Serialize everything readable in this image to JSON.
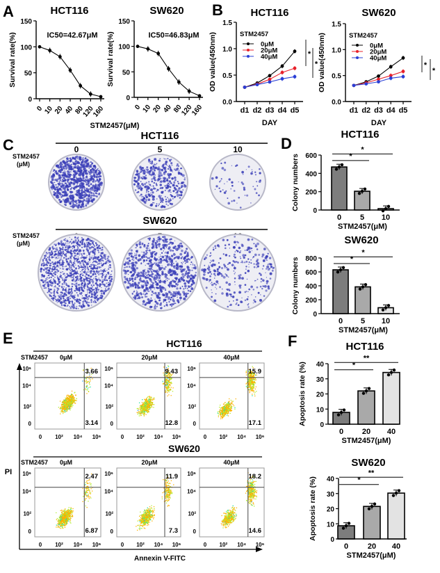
{
  "panel_labels": [
    "A",
    "B",
    "C",
    "D",
    "E",
    "F"
  ],
  "chart_data": [
    {
      "id": "A1",
      "type": "line",
      "title": "HCT116",
      "annotation": "IC50=42.67μM",
      "xlabel": "STM2457(μM)",
      "ylabel": "Survival rate(%)",
      "categories": [
        "0",
        "10",
        "20",
        "40",
        "80",
        "120",
        "160"
      ],
      "ylim": [
        0,
        150
      ],
      "yticks": [
        "0",
        "50",
        "100",
        "150"
      ],
      "ytick_values": [
        0,
        50,
        100,
        150
      ],
      "series": [
        {
          "color": "#000000",
          "values": [
            100,
            93,
            81,
            55,
            25,
            9,
            4
          ]
        }
      ]
    },
    {
      "id": "A2",
      "type": "line",
      "title": "SW620",
      "annotation": "IC50=46.83μM",
      "ylabel": "Survival rate(%)",
      "categories": [
        "0",
        "10",
        "20",
        "40",
        "80",
        "120",
        "160"
      ],
      "ylim": [
        0,
        150
      ],
      "yticks": [
        "0",
        "50",
        "100",
        "150"
      ],
      "ytick_values": [
        0,
        50,
        100,
        150
      ],
      "series": [
        {
          "color": "#000000",
          "values": [
            100,
            95,
            86,
            56,
            30,
            12,
            3
          ]
        }
      ]
    },
    {
      "id": "B1",
      "type": "line",
      "title": "HCT116",
      "xlabel": "DAY",
      "ylabel": "OD value(450nm)",
      "legend_title": "STM2457",
      "categories": [
        "d1",
        "d2",
        "d3",
        "d4",
        "d5"
      ],
      "ylim": [
        0,
        1.5
      ],
      "yticks": [
        "0.0",
        "0.5",
        "1.0",
        "1.5"
      ],
      "ytick_values": [
        0,
        0.5,
        1.0,
        1.5
      ],
      "series": [
        {
          "name": "0μM",
          "color": "#000000",
          "values": [
            0.27,
            0.35,
            0.49,
            0.67,
            0.95
          ]
        },
        {
          "name": "20μM",
          "color": "#e8202a",
          "values": [
            0.27,
            0.33,
            0.42,
            0.55,
            0.63
          ]
        },
        {
          "name": "40μM",
          "color": "#2a3fd6",
          "values": [
            0.27,
            0.32,
            0.37,
            0.43,
            0.47
          ]
        }
      ],
      "significance": [
        "*",
        "*"
      ]
    },
    {
      "id": "B2",
      "type": "line",
      "title": "SW620",
      "xlabel": "DAY",
      "ylabel": "OD value(450nm)",
      "legend_title": "STM2457",
      "categories": [
        "d1",
        "d2",
        "d3",
        "d4",
        "d5"
      ],
      "ylim": [
        0,
        1.5
      ],
      "yticks": [
        "0.0",
        "0.5",
        "1.0",
        "1.5"
      ],
      "ytick_values": [
        0,
        0.5,
        1.0,
        1.5
      ],
      "series": [
        {
          "name": "0μM",
          "color": "#000000",
          "values": [
            0.31,
            0.38,
            0.49,
            0.67,
            0.84
          ]
        },
        {
          "name": "20μM",
          "color": "#e8202a",
          "values": [
            0.31,
            0.36,
            0.43,
            0.5,
            0.58
          ]
        },
        {
          "name": "40μM",
          "color": "#2a3fd6",
          "values": [
            0.31,
            0.34,
            0.38,
            0.45,
            0.48
          ]
        }
      ],
      "significance": [
        "*",
        "*"
      ]
    },
    {
      "id": "D1",
      "type": "bar",
      "title": "HCT116",
      "xlabel": "STM2457(μM)",
      "ylabel": "Colony numbers",
      "categories": [
        "0",
        "5",
        "10"
      ],
      "values": [
        470,
        205,
        15
      ],
      "ylim": [
        0,
        600
      ],
      "yticks": [
        "0",
        "200",
        "400",
        "600"
      ],
      "ytick_values": [
        0,
        200,
        400,
        600
      ],
      "colors": [
        "#7d7d7d",
        "#a9a9a9",
        "#e3e3e3"
      ],
      "significance": [
        "*",
        "*"
      ]
    },
    {
      "id": "D2",
      "type": "bar",
      "title": "SW620",
      "xlabel": "STM2457(μM)",
      "ylabel": "Colony numbers",
      "categories": [
        "0",
        "5",
        "10"
      ],
      "values": [
        630,
        385,
        85
      ],
      "ylim": [
        0,
        800
      ],
      "yticks": [
        "0",
        "200",
        "400",
        "600",
        "800"
      ],
      "ytick_values": [
        0,
        200,
        400,
        600,
        800
      ],
      "colors": [
        "#7d7d7d",
        "#a9a9a9",
        "#e3e3e3"
      ],
      "significance": [
        "*",
        "*"
      ]
    },
    {
      "id": "F1",
      "type": "bar",
      "title": "HCT116",
      "xlabel": "STM2457(μM)",
      "ylabel": "Apoptosis rate (%)",
      "categories": [
        "0",
        "20",
        "40"
      ],
      "values": [
        7.8,
        22,
        34.2
      ],
      "ylim": [
        0,
        40
      ],
      "yticks": [
        "0",
        "10",
        "20",
        "30",
        "40"
      ],
      "ytick_values": [
        0,
        10,
        20,
        30,
        40
      ],
      "colors": [
        "#7d7d7d",
        "#a9a9a9",
        "#e3e3e3"
      ],
      "significance": [
        "*",
        "**"
      ]
    },
    {
      "id": "F2",
      "type": "bar",
      "title": "SW620",
      "xlabel": "STM2457(μM)",
      "ylabel": "Apoptosis rate (%)",
      "categories": [
        "0",
        "20",
        "40"
      ],
      "values": [
        8.7,
        21.5,
        30.3
      ],
      "ylim": [
        0,
        40
      ],
      "yticks": [
        "0",
        "10",
        "20",
        "30",
        "40"
      ],
      "ytick_values": [
        0,
        10,
        20,
        30,
        40
      ],
      "colors": [
        "#7d7d7d",
        "#a9a9a9",
        "#e3e3e3"
      ],
      "significance": [
        "*",
        "**"
      ]
    }
  ],
  "colony": {
    "treatment_label_line1": "STM2457",
    "treatment_label_line2": "(μM)",
    "rows": [
      {
        "title": "HCT116",
        "doses": [
          "0",
          "5",
          "10"
        ],
        "density": [
          1.0,
          0.45,
          0.05
        ]
      },
      {
        "title": "SW620",
        "doses": [
          "0",
          "5",
          "10"
        ],
        "density": [
          1.0,
          0.6,
          0.2
        ]
      }
    ],
    "dot_color": "#3b3fb8"
  },
  "flow": {
    "y_axis_label": "PI",
    "x_axis_label": "Annexin V-FITC",
    "treatment_label": "STM2457",
    "axis_ticks": [
      "0",
      "10²",
      "10⁴",
      "10⁶"
    ],
    "rows": [
      {
        "title": "HCT116",
        "doses": [
          "0μM",
          "20μM",
          "40μM"
        ],
        "upper_right": [
          "3.66",
          "9.43",
          "15.9"
        ],
        "lower_right": [
          "3.14",
          "12.8",
          "17.1"
        ]
      },
      {
        "title": "SW620",
        "doses": [
          "0μM",
          "20μM",
          "40μM"
        ],
        "upper_right": [
          "2.47",
          "11.9",
          "18.2"
        ],
        "lower_right": [
          "6.87",
          "7.3",
          "14.6"
        ]
      }
    ]
  }
}
